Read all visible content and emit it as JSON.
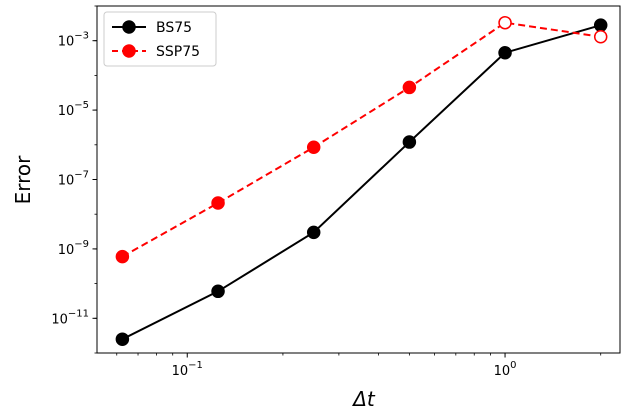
{
  "chart_data": {
    "type": "line",
    "xscale": "log",
    "yscale": "log",
    "xlabel": "Δt",
    "ylabel": "Error",
    "xlim": [
      0.052,
      2.3
    ],
    "ylim": [
      1e-12,
      0.01
    ],
    "x_ticks": [
      {
        "value": 0.1,
        "base": "10",
        "exp": "−1"
      },
      {
        "value": 1,
        "base": "10",
        "exp": "0"
      }
    ],
    "y_ticks": [
      {
        "value": 1e-11,
        "base": "10",
        "exp": "−11"
      },
      {
        "value": 1e-09,
        "base": "10",
        "exp": "−9"
      },
      {
        "value": 1e-07,
        "base": "10",
        "exp": "−7"
      },
      {
        "value": 1e-05,
        "base": "10",
        "exp": "−5"
      },
      {
        "value": 0.001,
        "base": "10",
        "exp": "−3"
      }
    ],
    "grid": false,
    "legend_position": "top-left",
    "series": [
      {
        "name": "BS75",
        "color": "#000000",
        "line_style": "solid",
        "marker": "filled-circle",
        "x": [
          0.0625,
          0.125,
          0.25,
          0.5,
          1,
          2
        ],
        "y": [
          2.5e-12,
          6e-11,
          3e-09,
          1.2e-06,
          0.00045,
          0.0028
        ],
        "filled": [
          true,
          true,
          true,
          true,
          true,
          true
        ]
      },
      {
        "name": "SSP75",
        "color": "#ff0000",
        "line_style": "dashed",
        "marker": "circle",
        "x": [
          0.0625,
          0.125,
          0.25,
          0.5,
          1,
          2
        ],
        "y": [
          6e-10,
          2.1e-08,
          8.5e-07,
          4.5e-05,
          0.0033,
          0.0013
        ],
        "filled": [
          true,
          true,
          true,
          true,
          false,
          false
        ]
      }
    ]
  }
}
